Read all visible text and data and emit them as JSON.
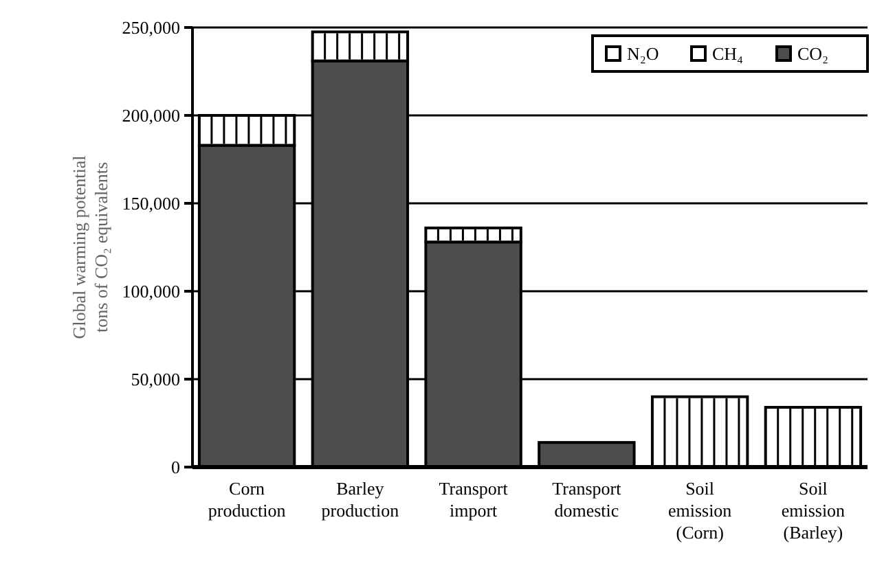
{
  "chart_data": {
    "type": "bar",
    "stacked": true,
    "ylabel": "Global warming potential\ntons of CO₂ equivalents",
    "categories": [
      "Corn production",
      "Barley production",
      "Transport import",
      "Transport domestic",
      "Soil emission (Corn)",
      "Soil emission (Barley)"
    ],
    "series": [
      {
        "name": "CO₂",
        "color": "#4d4d4d",
        "values": [
          183000,
          231000,
          128000,
          14000,
          null,
          null
        ]
      },
      {
        "name": "CH₄",
        "color": "#ffffff",
        "values": [
          null,
          null,
          null,
          null,
          null,
          null
        ]
      },
      {
        "name": "N₂O",
        "color": "#ffffff",
        "values": [
          17000,
          16500,
          8000,
          null,
          40000,
          34000
        ]
      }
    ],
    "ylim": [
      0,
      250000
    ],
    "yticks": [
      {
        "value": 0,
        "label": "0"
      },
      {
        "value": 50000,
        "label": "50,000"
      },
      {
        "value": 100000,
        "label": "100,000"
      },
      {
        "value": 150000,
        "label": "150,000"
      },
      {
        "value": 200000,
        "label": "200,000"
      },
      {
        "value": 250000,
        "label": "250,000"
      }
    ],
    "grid": "y",
    "legend": "top right"
  }
}
